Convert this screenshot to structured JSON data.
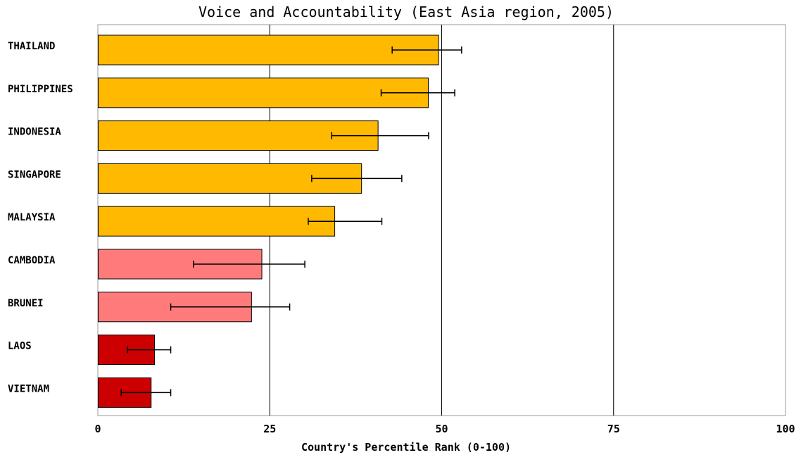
{
  "chart_data": {
    "type": "bar",
    "orientation": "horizontal",
    "title": "Voice and Accountability (East Asia region, 2005)",
    "xlabel": "Country's Percentile Rank (0-100)",
    "ylabel": "",
    "xlim": [
      0,
      100
    ],
    "xticks": [
      0,
      25,
      50,
      75,
      100
    ],
    "grid": true,
    "legend": "none",
    "categories": [
      "THAILAND",
      "PHILIPPINES",
      "INDONESIA",
      "SINGAPORE",
      "MALAYSIA",
      "CAMBODIA",
      "BRUNEI",
      "LAOS",
      "VIETNAM"
    ],
    "values": [
      49.5,
      48.0,
      40.7,
      38.3,
      34.4,
      23.8,
      22.3,
      8.2,
      7.7
    ],
    "error_low": [
      42.8,
      41.2,
      34.0,
      31.1,
      30.6,
      13.9,
      10.6,
      4.3,
      3.4
    ],
    "error_high": [
      52.9,
      51.9,
      48.1,
      44.2,
      41.3,
      30.1,
      27.9,
      10.6,
      10.6
    ],
    "colors": [
      "#FFB900",
      "#FFB900",
      "#FFB900",
      "#FFB900",
      "#FFB900",
      "#FF7B7B",
      "#FF7B7B",
      "#CC0000",
      "#CC0000"
    ]
  }
}
